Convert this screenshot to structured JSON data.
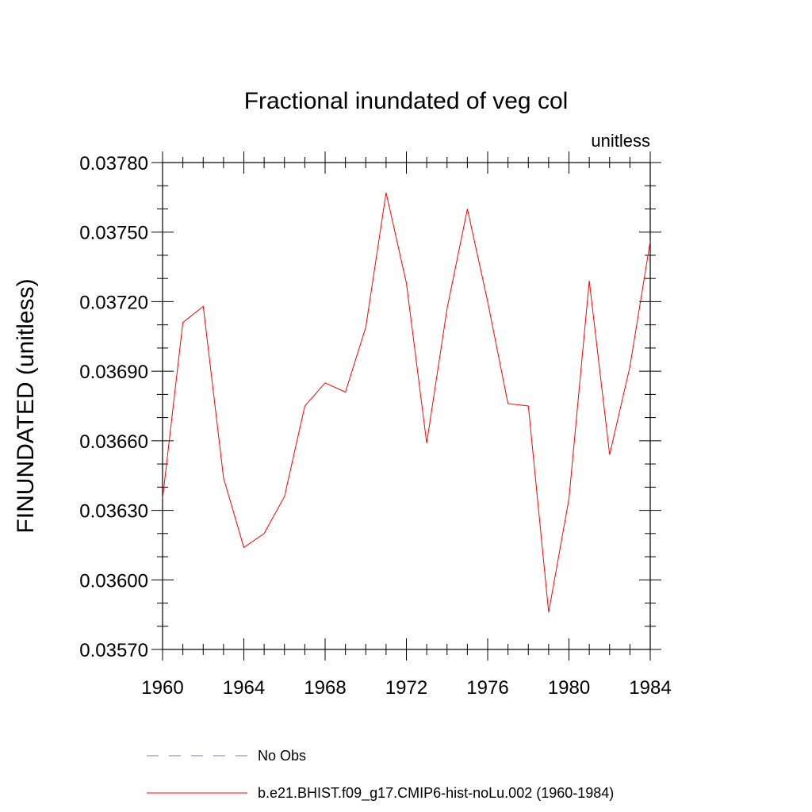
{
  "chart_data": {
    "type": "line",
    "title": "Fractional inundated of veg col",
    "units_label": "unitless",
    "xlabel": "",
    "ylabel": "FINUNDATED  (unitless)",
    "xlim": [
      1960,
      1984
    ],
    "ylim": [
      0.0357,
      0.0378
    ],
    "x_ticks": [
      1960,
      1964,
      1968,
      1972,
      1976,
      1980,
      1984
    ],
    "x_tick_labels": [
      "1960",
      "1964",
      "1968",
      "1972",
      "1976",
      "1980",
      "1984"
    ],
    "y_ticks": [
      0.0357,
      0.036,
      0.0363,
      0.0366,
      0.0369,
      0.0372,
      0.0375,
      0.0378
    ],
    "y_tick_labels": [
      "0.03570",
      "0.03600",
      "0.03630",
      "0.03660",
      "0.03690",
      "0.03720",
      "0.03750",
      "0.03780"
    ],
    "grid": false,
    "legend_position": "bottom",
    "series": [
      {
        "name": "b.e21.BHIST.f09_g17.CMIP6-hist-noLu.002 (1960-1984)",
        "color": "#ff0000",
        "dash": "solid",
        "x": [
          1960,
          1961,
          1962,
          1963,
          1964,
          1965,
          1966,
          1967,
          1968,
          1969,
          1970,
          1971,
          1972,
          1973,
          1974,
          1975,
          1976,
          1977,
          1978,
          1979,
          1980,
          1981,
          1982,
          1983,
          1984
        ],
        "y": [
          0.03635,
          0.03711,
          0.03718,
          0.03644,
          0.03614,
          0.0362,
          0.03636,
          0.03675,
          0.03685,
          0.03681,
          0.03709,
          0.03767,
          0.03728,
          0.03659,
          0.03717,
          0.0376,
          0.0372,
          0.03676,
          0.03675,
          0.03586,
          0.03635,
          0.03729,
          0.03654,
          0.03692,
          0.03746
        ]
      }
    ],
    "legend": [
      {
        "label": "No Obs",
        "color": "#7777bb",
        "dash": "dashed"
      },
      {
        "label": "b.e21.BHIST.f09_g17.CMIP6-hist-noLu.002 (1960-1984)",
        "color": "#ff0000",
        "dash": "solid"
      }
    ]
  }
}
